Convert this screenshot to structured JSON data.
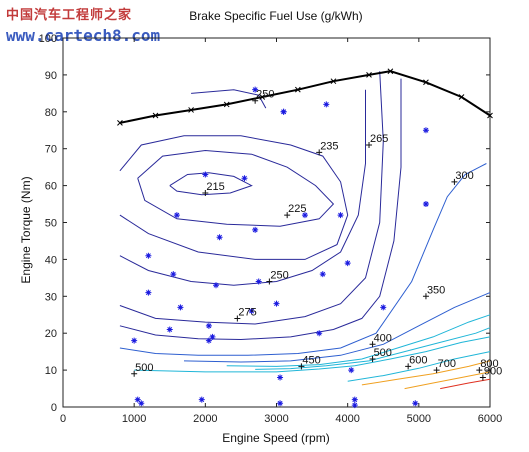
{
  "watermark": {
    "site_cn": "中国汽车工程师之家",
    "site_url": "www.cartech8.com"
  },
  "chart_data": {
    "type": "contour",
    "title": "Brake Specific Fuel Use (g/kWh)",
    "xlabel": "Engine Speed (rpm)",
    "ylabel": "Engine Torque (Nm)",
    "xlim": [
      0,
      6000
    ],
    "ylim": [
      0,
      100
    ],
    "x_ticks": [
      "0",
      "1000",
      "2000",
      "3000",
      "4000",
      "5000",
      "6000"
    ],
    "y_ticks": [
      "0",
      "10",
      "20",
      "30",
      "40",
      "50",
      "60",
      "70",
      "80",
      "90",
      "100"
    ],
    "grid": false,
    "colors": {
      "max_torque": "#000000",
      "low_bsfc": "#2a2a9a",
      "mid_bsfc": "#2e5fd0",
      "high_bsfc": "#20b6d8",
      "very_high_bsfc": "#f0a020",
      "extreme_bsfc": "#e03020",
      "points": "#1a1ae0"
    },
    "max_torque_curve": {
      "x": [
        800,
        1300,
        1800,
        2300,
        2800,
        3300,
        3800,
        4300,
        4600,
        5100,
        5600,
        6000
      ],
      "y": [
        77,
        79,
        80.5,
        82,
        84,
        86,
        88.3,
        90,
        91,
        88,
        84,
        79
      ]
    },
    "contour_labels": [
      {
        "text": "250",
        "x": 2700,
        "y": 83
      },
      {
        "text": "235",
        "x": 3600,
        "y": 69
      },
      {
        "text": "265",
        "x": 4300,
        "y": 71
      },
      {
        "text": "215",
        "x": 2000,
        "y": 58
      },
      {
        "text": "300",
        "x": 5500,
        "y": 61
      },
      {
        "text": "225",
        "x": 3150,
        "y": 52
      },
      {
        "text": "250",
        "x": 2900,
        "y": 34
      },
      {
        "text": "350",
        "x": 5100,
        "y": 30
      },
      {
        "text": "275",
        "x": 2450,
        "y": 24
      },
      {
        "text": "400",
        "x": 4350,
        "y": 17
      },
      {
        "text": "500",
        "x": 4350,
        "y": 13
      },
      {
        "text": "450",
        "x": 3350,
        "y": 11
      },
      {
        "text": "600",
        "x": 4850,
        "y": 11
      },
      {
        "text": "700",
        "x": 5250,
        "y": 10
      },
      {
        "text": "800",
        "x": 5850,
        "y": 10
      },
      {
        "text": "900",
        "x": 5900,
        "y": 8
      },
      {
        "text": "500",
        "x": 1000,
        "y": 9
      }
    ],
    "data_points": {
      "x": [
        1000,
        1050,
        1100,
        1200,
        1200,
        1500,
        1550,
        1600,
        1650,
        1950,
        2000,
        2050,
        2050,
        2100,
        2150,
        2200,
        2550,
        2650,
        2700,
        2700,
        2750,
        3000,
        3050,
        3050,
        3100,
        3100,
        3400,
        3600,
        3650,
        3700,
        3900,
        4000,
        4050,
        4100,
        4100,
        4500,
        4950,
        5100,
        5100,
        5100
      ],
      "y": [
        18,
        2,
        1,
        31,
        41,
        21,
        36,
        52,
        27,
        2,
        63,
        18,
        22,
        19,
        33,
        46,
        62,
        26,
        48,
        86,
        34,
        28,
        1,
        8,
        80,
        80,
        52,
        20,
        36,
        82,
        52,
        39,
        10,
        0.5,
        2,
        27,
        1,
        75,
        55,
        55
      ]
    },
    "contours": [
      {
        "label": "215",
        "x": [
          1500,
          1750,
          2050,
          2400,
          2650,
          2350,
          1950,
          1600,
          1500
        ],
        "y": [
          60,
          63,
          63.5,
          62.5,
          60,
          58,
          57.5,
          58.5,
          60
        ]
      },
      {
        "label": "225",
        "x": [
          1050,
          1400,
          2000,
          2650,
          3150,
          3550,
          3800,
          3600,
          3050,
          2300,
          1600,
          1150,
          1050
        ],
        "y": [
          62,
          68,
          69.5,
          68.5,
          65,
          60,
          55,
          51,
          49,
          49.5,
          51,
          56,
          62
        ]
      },
      {
        "label": "235",
        "x": [
          800,
          1100,
          1700,
          2500,
          3200,
          3650,
          3900,
          4000,
          3850,
          3400,
          2700,
          1900,
          1200,
          800
        ],
        "y": [
          64,
          71,
          73.5,
          73.5,
          71,
          68,
          61,
          52,
          44,
          40,
          40,
          42,
          47,
          52
        ]
      },
      {
        "label": "250",
        "x": [
          1800,
          2400,
          2750,
          2850
        ],
        "y": [
          85,
          86,
          84.5,
          81
        ]
      },
      {
        "label": "250",
        "x": [
          800,
          1200,
          1800,
          2400,
          3000,
          3500,
          3900,
          4150,
          4250,
          4250
        ],
        "y": [
          41,
          37,
          34,
          33,
          34,
          37,
          42,
          52,
          66,
          86
        ]
      },
      {
        "label": "265",
        "x": [
          800,
          1300,
          2000,
          2700,
          3400,
          3900,
          4250,
          4450,
          4500,
          4450
        ],
        "y": [
          27.5,
          24,
          23,
          22.5,
          24.5,
          28,
          35,
          50,
          72,
          91
        ]
      },
      {
        "label": "275",
        "x": [
          800,
          1300,
          1900,
          2500,
          3200,
          3800,
          4200,
          4450,
          4650,
          4750,
          4750
        ],
        "y": [
          22,
          19.5,
          18.5,
          18.3,
          19,
          21,
          24,
          30,
          45,
          65,
          89
        ]
      },
      {
        "label": "300",
        "x": [
          800,
          1300,
          1900,
          2600,
          3300,
          3900,
          4400,
          4900,
          5200,
          5400,
          5650,
          5850,
          5950
        ],
        "y": [
          16,
          14.5,
          14,
          14,
          14.5,
          16,
          20,
          34,
          48,
          57,
          63,
          65,
          66
        ]
      },
      {
        "label": "350",
        "x": [
          1700,
          2500,
          3200,
          3900,
          4500,
          5000,
          5500,
          6000
        ],
        "y": [
          12.5,
          12.2,
          12.5,
          14,
          17,
          22,
          27,
          31
        ]
      },
      {
        "label": "400",
        "x": [
          2300,
          3000,
          3600,
          4200,
          4700,
          5200,
          5700,
          6000
        ],
        "y": [
          11.2,
          11,
          11.5,
          13,
          16,
          19,
          23,
          25
        ]
      },
      {
        "label": "450",
        "x": [
          2700,
          3200,
          3700,
          4300,
          4800,
          5300,
          5800,
          6000
        ],
        "y": [
          10.2,
          10.4,
          11.2,
          12.5,
          15,
          17.5,
          20,
          21.5
        ]
      },
      {
        "label": "500",
        "x": [
          1000,
          2000,
          3000,
          3600,
          4100,
          4600,
          5100,
          5600,
          6000
        ],
        "y": [
          10,
          9.5,
          9.5,
          10.3,
          11.2,
          13,
          15,
          17.5,
          19
        ]
      },
      {
        "label": "600",
        "x": [
          4000,
          4500,
          5000,
          5500,
          6000
        ],
        "y": [
          7,
          8.5,
          10.5,
          13,
          15
        ]
      },
      {
        "label": "700",
        "x": [
          4200,
          4700,
          5200,
          5700,
          6000
        ],
        "y": [
          6,
          7.5,
          9,
          11,
          12.5
        ]
      },
      {
        "label": "800",
        "x": [
          4800,
          5200,
          5600,
          6000
        ],
        "y": [
          5,
          6.5,
          8,
          9.5
        ]
      },
      {
        "label": "900",
        "x": [
          5300,
          5700,
          6000
        ],
        "y": [
          5,
          6.5,
          7.5
        ]
      }
    ]
  }
}
